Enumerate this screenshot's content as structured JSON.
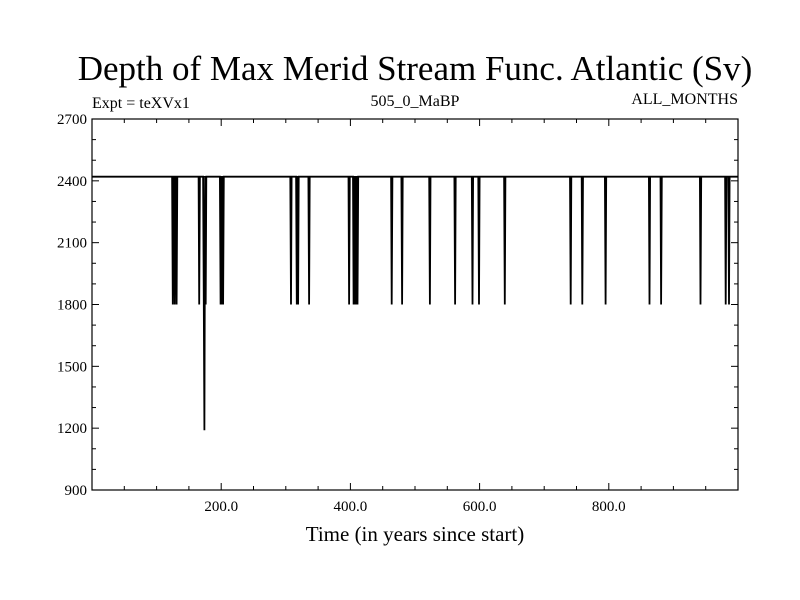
{
  "chart_data": {
    "type": "line",
    "title": "Depth of Max Merid Stream Func. Atlantic (Sv)",
    "subtitle_left": "Expt = teXVx1",
    "subtitle_center": "505_0_MaBP",
    "subtitle_right": "ALL_MONTHS",
    "xlabel": "Time (in years since start)",
    "ylabel": "",
    "xlim": [
      0,
      1000
    ],
    "ylim": [
      900,
      2700
    ],
    "xticks": [
      200,
      400,
      600,
      800
    ],
    "xtick_labels": [
      "200.0",
      "400.0",
      "600.0",
      "800.0"
    ],
    "yticks": [
      900,
      1200,
      1500,
      1800,
      2100,
      2400,
      2700
    ],
    "ytick_labels": [
      "900",
      "1200",
      "1500",
      "1800",
      "2100",
      "2400",
      "2700"
    ],
    "baseline": 2420,
    "series": [
      {
        "x": [
          0,
          124,
          125,
          126,
          127,
          128,
          129,
          130,
          131,
          132,
          133,
          134,
          165,
          166,
          167,
          168,
          172,
          173,
          174,
          175,
          176,
          177,
          178,
          198,
          199,
          200,
          201,
          202,
          203,
          204,
          205,
          206,
          307,
          308,
          309,
          316,
          317,
          318,
          319,
          320,
          335,
          336,
          337,
          397,
          398,
          399,
          400,
          404,
          405,
          406,
          407,
          408,
          409,
          410,
          411,
          412,
          413,
          414,
          415,
          416,
          463,
          464,
          465,
          479,
          480,
          481,
          522,
          523,
          524,
          561,
          562,
          563,
          588,
          589,
          590,
          598,
          599,
          600,
          638,
          639,
          640,
          740,
          741,
          742,
          758,
          759,
          760,
          794,
          795,
          796,
          862,
          863,
          864,
          880,
          881,
          882,
          941,
          942,
          943,
          980,
          981,
          982,
          985,
          986,
          987,
          988,
          1000
        ],
        "y": [
          2420,
          2420,
          1800,
          2420,
          2420,
          1800,
          2420,
          2420,
          1800,
          2420,
          2420,
          2420,
          2420,
          1800,
          2420,
          2420,
          2420,
          1800,
          1190,
          2420,
          1800,
          2420,
          2420,
          2420,
          1800,
          2420,
          1800,
          2420,
          1800,
          2420,
          2420,
          2420,
          2420,
          1800,
          2420,
          2420,
          1800,
          2420,
          1800,
          2420,
          2420,
          1800,
          2420,
          2420,
          1800,
          2420,
          2420,
          2420,
          1800,
          2420,
          1800,
          2420,
          1800,
          2420,
          1800,
          2420,
          2420,
          2420,
          2420,
          2420,
          2420,
          1800,
          2420,
          2420,
          1800,
          2420,
          2420,
          1800,
          2420,
          2420,
          1800,
          2420,
          2420,
          1800,
          2420,
          2420,
          1800,
          2420,
          2420,
          1800,
          2420,
          2420,
          1800,
          2420,
          2420,
          1800,
          2420,
          2420,
          1800,
          2420,
          2420,
          1800,
          2420,
          2420,
          1800,
          2420,
          2420,
          1800,
          2420,
          2420,
          1800,
          2420,
          2420,
          1800,
          2420,
          2420,
          2420
        ]
      }
    ]
  }
}
